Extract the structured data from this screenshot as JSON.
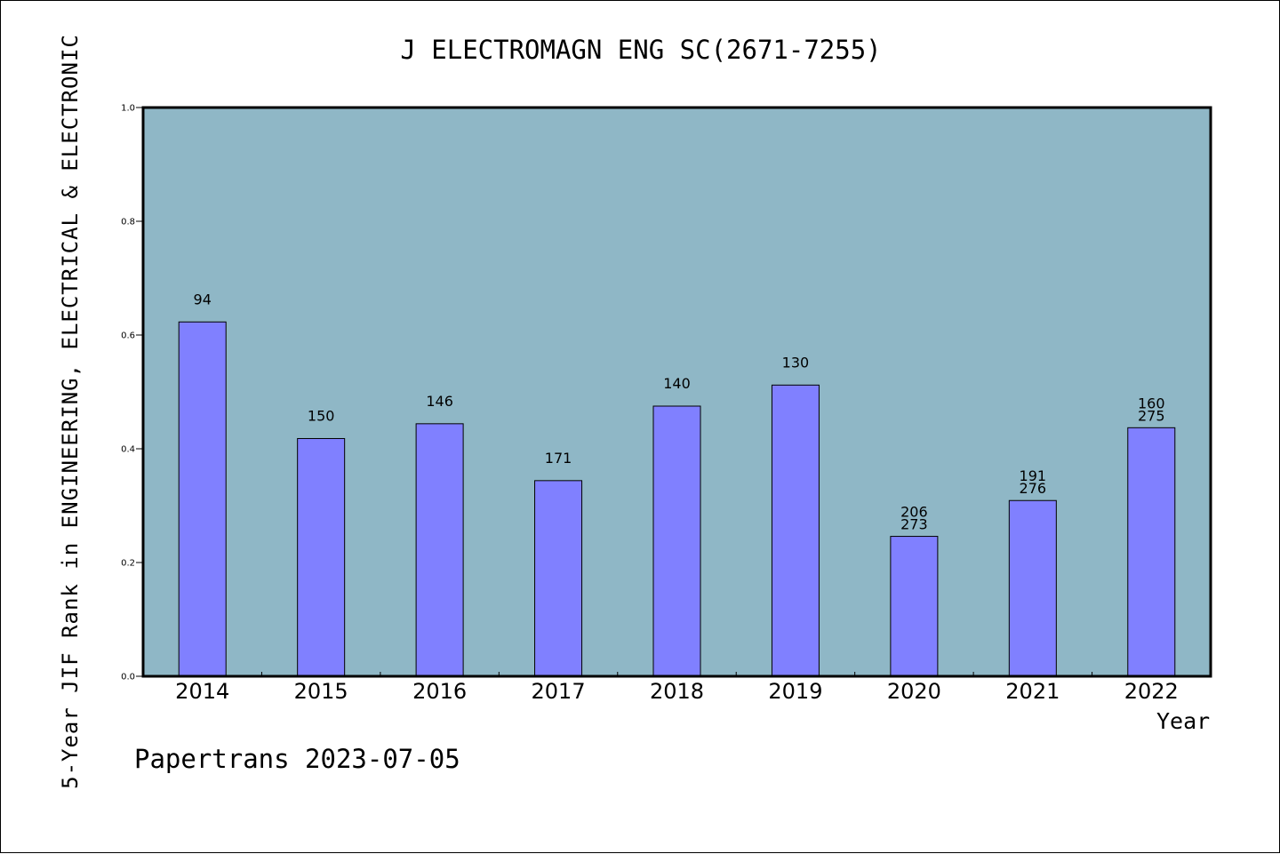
{
  "chart_data": {
    "type": "bar",
    "title": "J ELECTROMAGN ENG SC(2671-7255)",
    "xlabel": "Year",
    "ylabel": "5-Year JIF Rank in ENGINEERING, ELECTRICAL & ELECTRONIC",
    "ylim": [
      0,
      1.0
    ],
    "yticks": [
      "0.0",
      "0.2",
      "0.4",
      "0.6",
      "0.8",
      "1.0"
    ],
    "grid": false,
    "categories": [
      "2014",
      "2015",
      "2016",
      "2017",
      "2018",
      "2019",
      "2020",
      "2021",
      "2022"
    ],
    "values": [
      0.623,
      0.418,
      0.444,
      0.344,
      0.475,
      0.512,
      0.246,
      0.309,
      0.437
    ],
    "bar_labels": [
      [
        "94"
      ],
      [
        "150"
      ],
      [
        "146"
      ],
      [
        "171"
      ],
      [
        "140"
      ],
      [
        "130"
      ],
      [
        "206",
        "273"
      ],
      [
        "191",
        "276"
      ],
      [
        "160",
        "275"
      ]
    ],
    "colors": {
      "plot_background": "#8fb7c6",
      "bar_fill": "#8080ff",
      "bar_stroke": "#000000"
    }
  },
  "footer": "Papertrans 2023-07-05"
}
